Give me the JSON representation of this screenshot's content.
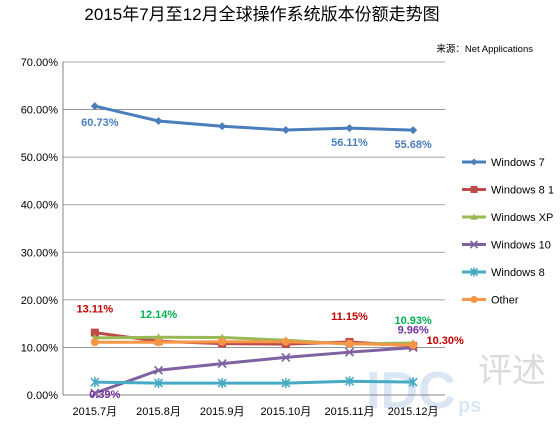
{
  "chart_data": {
    "type": "line",
    "title": "2015年7月至12月全球操作系统版本份额走势图",
    "source": "来源：Net Applications",
    "categories": [
      "2015.7月",
      "2015.8月",
      "2015.9月",
      "2015.10月",
      "2015.11月",
      "2015.12月"
    ],
    "ylim": [
      0,
      70
    ],
    "yticks": [
      "0.00%",
      "10.00%",
      "20.00%",
      "30.00%",
      "40.00%",
      "50.00%",
      "60.00%",
      "70.00%"
    ],
    "grid": true,
    "legend_position": "right",
    "series": [
      {
        "name": "Windows 7",
        "color": "#4a7ebb",
        "marker": "diamond",
        "values": [
          60.73,
          57.6,
          56.5,
          55.7,
          56.11,
          55.68
        ]
      },
      {
        "name": "Windows 8 1",
        "color": "#be4b48",
        "marker": "square",
        "values": [
          13.11,
          11.3,
          10.8,
          10.7,
          11.15,
          10.3
        ]
      },
      {
        "name": "Windows XP",
        "color": "#98b954",
        "marker": "triangle",
        "values": [
          12.0,
          12.14,
          12.1,
          11.5,
          10.7,
          10.93
        ]
      },
      {
        "name": "Windows 10",
        "color": "#7e62a1",
        "marker": "x",
        "values": [
          0.39,
          5.2,
          6.6,
          7.9,
          9.0,
          9.96
        ]
      },
      {
        "name": "Windows 8",
        "color": "#46aac5",
        "marker": "star",
        "values": [
          2.7,
          2.5,
          2.5,
          2.5,
          2.9,
          2.7
        ]
      },
      {
        "name": "Other",
        "color": "#f79646",
        "marker": "circle",
        "values": [
          11.1,
          11.1,
          11.2,
          11.2,
          10.8,
          10.5
        ]
      }
    ],
    "annotations": [
      {
        "text": "60.73%",
        "series": 0,
        "index": 0,
        "color": "#4a7ebb"
      },
      {
        "text": "56.11%",
        "series": 0,
        "index": 4,
        "color": "#4a7ebb"
      },
      {
        "text": "55.68%",
        "series": 0,
        "index": 5,
        "color": "#4a7ebb"
      },
      {
        "text": "13.11%",
        "series": 1,
        "index": 0,
        "color": "#c00000"
      },
      {
        "text": "11.15%",
        "series": 1,
        "index": 4,
        "color": "#c00000"
      },
      {
        "text": "10.30%",
        "series": 1,
        "index": 5,
        "color": "#c00000"
      },
      {
        "text": "12.14%",
        "series": 2,
        "index": 1,
        "color": "#00b050"
      },
      {
        "text": "10.93%",
        "series": 2,
        "index": 5,
        "color": "#00b050"
      },
      {
        "text": "0.39%",
        "series": 3,
        "index": 0,
        "color": "#7030a0"
      },
      {
        "text": "9.96%",
        "series": 3,
        "index": 5,
        "color": "#7030a0"
      }
    ]
  },
  "watermark": {
    "text": "IDC",
    "sub": "ps",
    "han": "评述"
  }
}
